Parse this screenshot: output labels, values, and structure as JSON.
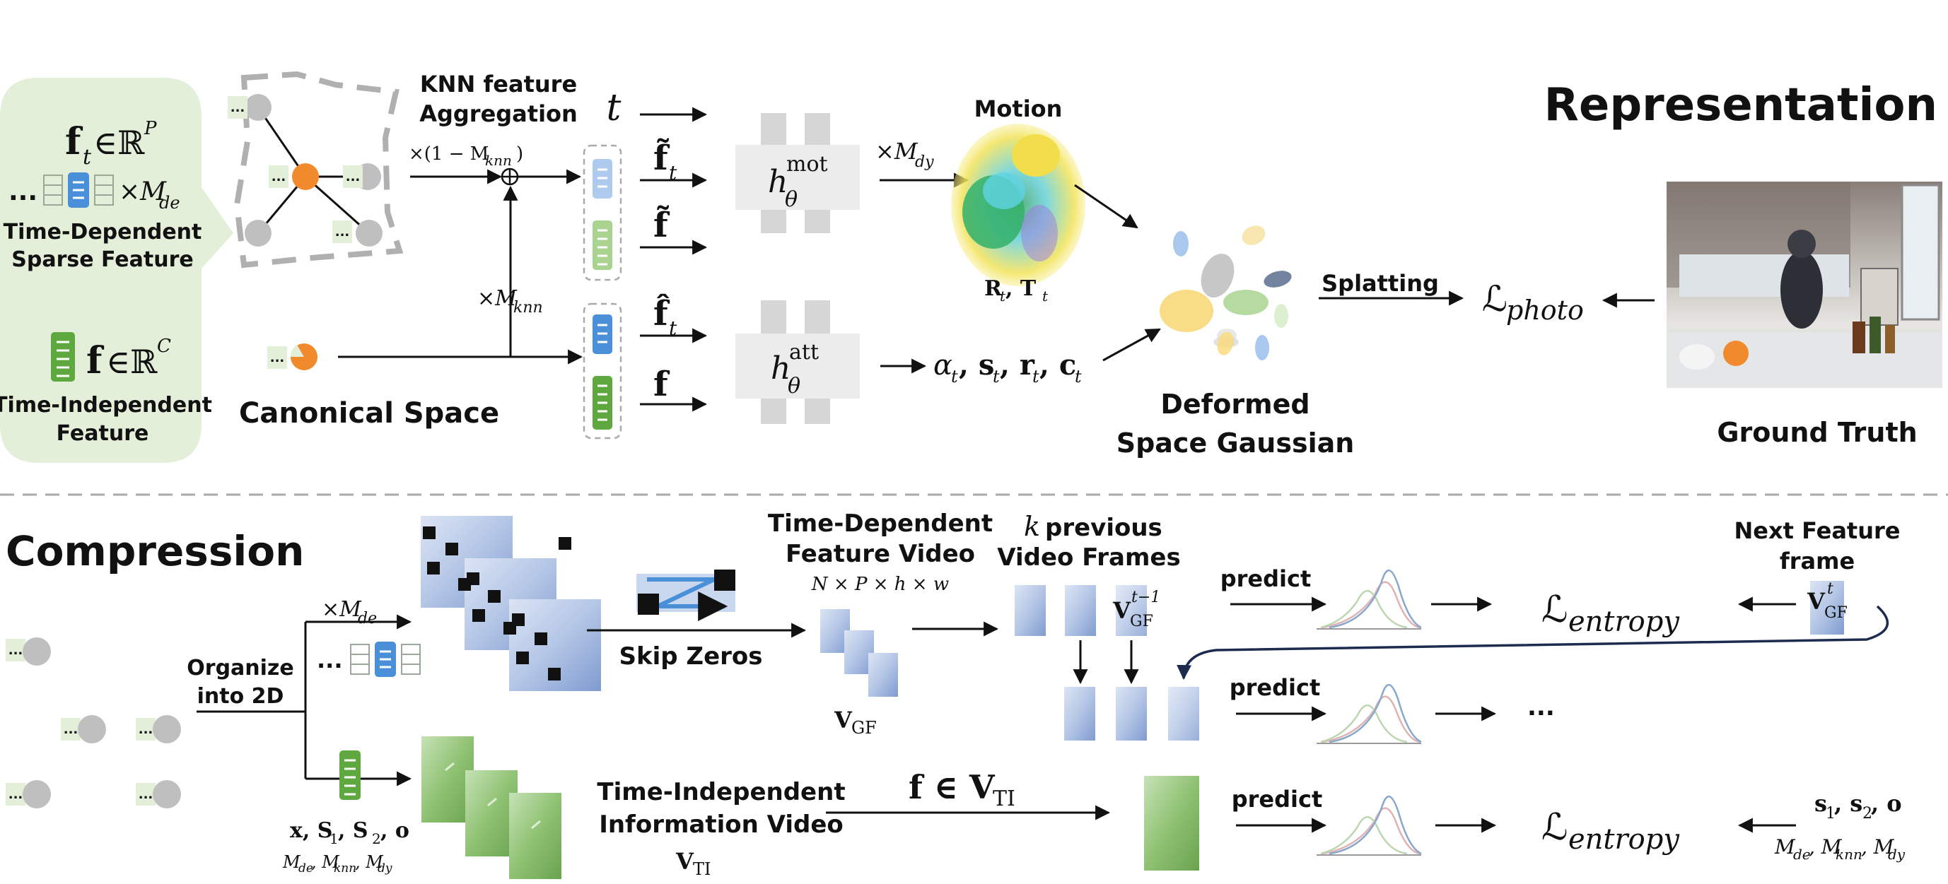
{
  "representation": {
    "section_title": "Representation",
    "time_dependent_symbol": "f",
    "time_dependent_sub": "t",
    "time_dependent_space": "∈ℝ",
    "time_dependent_sup": "P",
    "time_dependent_mult": "×M",
    "time_dependent_mult_sub": "de",
    "ellipsis": "...",
    "time_dependent_label_1": "Time-Dependent",
    "time_dependent_label_2": "Sparse Feature",
    "time_independent_symbol": "f",
    "time_independent_space": "∈ℝ",
    "time_independent_sup": "C",
    "time_independent_label_1": "Time-Independent",
    "time_independent_label_2": "Feature",
    "canonical_space": "Canonical Space",
    "knn_label_1": "KNN feature",
    "knn_label_2": "Aggregation",
    "knn_weight_1": "×(1 − M",
    "knn_weight_1_sub": "knn",
    "knn_weight_1_close": ")",
    "knn_weight_2": "×M",
    "knn_weight_2_sub": "knn",
    "input_t": "t",
    "input_ft_tilde": "f̃",
    "input_ft_tilde_sub": "t",
    "input_f_tilde": "f̃",
    "input_ft_hat": "f̂",
    "input_ft_hat_sub": "t",
    "input_f": "f",
    "mlp_mot": "h",
    "mlp_mot_sup": "mot",
    "mlp_mot_sub": "θ",
    "mlp_att": "h",
    "mlp_att_sup": "att",
    "mlp_att_sub": "θ",
    "mot_weight": "×M",
    "mot_weight_sub": "dy",
    "motion_label": "Motion",
    "motion_output": "R",
    "motion_output_sub1": "t",
    "motion_output_mid": ", T",
    "motion_output_sub2": "t",
    "att_output": "α",
    "att_output_sub1": "t",
    "att_output_2": ", s",
    "att_output_sub2": "t",
    "att_output_3": ", r",
    "att_output_sub3": "t",
    "att_output_4": ", c",
    "att_output_sub4": "t",
    "deformed_1": "Deformed",
    "deformed_2": "Space Gaussian",
    "splatting": "Splatting",
    "loss_photo": "ℒ",
    "loss_photo_sub": "photo",
    "ground_truth": "Ground Truth"
  },
  "compression": {
    "section_title": "Compression",
    "organize_1": "Organize",
    "organize_2": "into 2D",
    "mde_weight": "×M",
    "mde_weight_sub": "de",
    "ellipsis": "...",
    "params": "x, S",
    "params_sub1": "1",
    "params_mid": ", S",
    "params_sub2": "2",
    "params_end": ", o",
    "masks": "M",
    "masks_sub1": "de",
    "masks_mid1": ", M",
    "masks_sub2": "knn",
    "masks_mid2": ", M",
    "masks_sub3": "dy",
    "skip_zeros": "Skip Zeros",
    "td_video_1": "Time-Dependent",
    "td_video_2": "Feature Video",
    "td_video_dims": "N × P × h × w",
    "vgf": "V",
    "vgf_sub": "GF",
    "prev_frames_k": "k",
    "prev_frames_1": "previous",
    "prev_frames_2": "Video Frames",
    "vgf_prev": "V",
    "vgf_prev_sub": "GF",
    "vgf_prev_sup": "t−1",
    "predict": "predict",
    "loss_entropy": "ℒ",
    "loss_entropy_sub": "entropy",
    "next_frame_1": "Next Feature",
    "next_frame_2": "frame",
    "vgf_next": "V",
    "vgf_next_sub": "GF",
    "vgf_next_sup": "t",
    "dots": "...",
    "ti_video_1": "Time-Independent",
    "ti_video_2": "Information Video",
    "vti": "V",
    "vti_sub": "TI",
    "f_in_vti": "f ∈ V",
    "f_in_vti_sub": "TI",
    "params_right": "s",
    "params_right_sub1": "1",
    "params_right_mid": ", s",
    "params_right_sub2": "2",
    "params_right_end": ", o",
    "masks_right": "M",
    "masks_right_sub1": "de",
    "masks_right_mid1": ", M",
    "masks_right_sub2": "knn",
    "masks_right_mid2": ", M",
    "masks_right_sub3": "dy"
  },
  "colors": {
    "panel_green": "#e3efd9",
    "feature_blue": "#4a90d9",
    "feature_green": "#5ea83f",
    "node_orange": "#f08a2c",
    "node_gray": "#bfbfbf",
    "mlp_gray": "#e6e6e6",
    "frame_blue": "#c8d6ee",
    "frame_green": "#9fcb8a"
  }
}
